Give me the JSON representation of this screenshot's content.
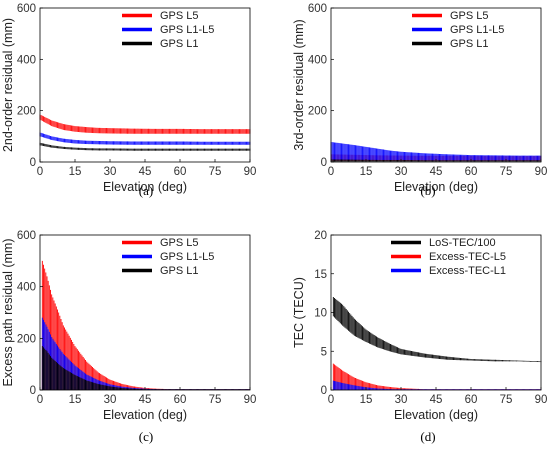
{
  "colors": {
    "red": "#ff0000",
    "blue": "#0000ff",
    "black": "#000000",
    "axis": "#000000",
    "tick_text": "#333333"
  },
  "chart_data": [
    {
      "type": "line",
      "caption": "(a)",
      "xlabel": "Elevation (deg)",
      "ylabel": "2nd-order residual (mm)",
      "xlim": [
        0,
        90
      ],
      "ylim": [
        0,
        600
      ],
      "xticks": [
        0,
        15,
        30,
        45,
        60,
        75,
        90
      ],
      "yticks": [
        0,
        200,
        400,
        600
      ],
      "grid": false,
      "legend_position": "top-right",
      "series": [
        {
          "name": "GPS L5",
          "color": "#ff0000",
          "x": [
            0,
            5,
            10,
            15,
            20,
            25,
            30,
            40,
            50,
            60,
            70,
            80,
            90
          ],
          "low": [
            165,
            140,
            125,
            118,
            114,
            112,
            111,
            110,
            110,
            110,
            110,
            110,
            110
          ],
          "high": [
            185,
            162,
            148,
            140,
            136,
            133,
            132,
            130,
            129,
            129,
            128,
            128,
            128
          ]
        },
        {
          "name": "GPS L1-L5",
          "color": "#0000ff",
          "x": [
            0,
            5,
            10,
            15,
            20,
            25,
            30,
            40,
            50,
            60,
            70,
            80,
            90
          ],
          "low": [
            100,
            86,
            77,
            72,
            70,
            69,
            68,
            67,
            67,
            67,
            67,
            67,
            67
          ],
          "high": [
            115,
            100,
            91,
            86,
            83,
            82,
            81,
            80,
            80,
            80,
            79,
            79,
            79
          ]
        },
        {
          "name": "GPS L1",
          "color": "#000000",
          "x": [
            0,
            5,
            10,
            15,
            20,
            25,
            30,
            40,
            50,
            60,
            70,
            80,
            90
          ],
          "low": [
            65,
            56,
            51,
            48,
            46,
            45,
            45,
            44,
            44,
            44,
            44,
            44,
            44
          ],
          "high": [
            75,
            65,
            59,
            56,
            54,
            53,
            53,
            52,
            52,
            52,
            52,
            52,
            52
          ]
        }
      ]
    },
    {
      "type": "line",
      "caption": "(b)",
      "xlabel": "Elevation (deg)",
      "ylabel": "3rd-order residual (mm)",
      "xlim": [
        0,
        90
      ],
      "ylim": [
        0,
        600
      ],
      "xticks": [
        0,
        15,
        30,
        45,
        60,
        75,
        90
      ],
      "yticks": [
        0,
        200,
        400,
        600
      ],
      "grid": false,
      "legend_position": "top-right",
      "series": [
        {
          "name": "GPS L5",
          "color": "#ff0000",
          "x": [
            0,
            10,
            20,
            30,
            40,
            50,
            60,
            70,
            80,
            90
          ],
          "low": [
            4,
            4,
            4,
            4,
            4,
            4,
            4,
            4,
            4,
            4
          ],
          "high": [
            30,
            28,
            26,
            25,
            24,
            24,
            24,
            23,
            23,
            23
          ]
        },
        {
          "name": "GPS L1-L5",
          "color": "#0000ff",
          "x": [
            0,
            5,
            10,
            15,
            20,
            25,
            30,
            40,
            50,
            60,
            70,
            80,
            90
          ],
          "low": [
            6,
            6,
            6,
            6,
            6,
            6,
            6,
            6,
            6,
            6,
            6,
            6,
            6
          ],
          "high": [
            78,
            72,
            66,
            59,
            52,
            45,
            40,
            34,
            30,
            27,
            26,
            25,
            25
          ]
        },
        {
          "name": "GPS L1",
          "color": "#000000",
          "x": [
            0,
            10,
            20,
            30,
            40,
            50,
            60,
            70,
            80,
            90
          ],
          "low": [
            2,
            2,
            2,
            2,
            2,
            2,
            2,
            2,
            2,
            2
          ],
          "high": [
            10,
            9,
            8,
            8,
            7,
            7,
            7,
            7,
            7,
            7
          ]
        }
      ]
    },
    {
      "type": "line",
      "caption": "(c)",
      "xlabel": "Elevation (deg)",
      "ylabel": "Excess path residual (mm)",
      "xlim": [
        0,
        90
      ],
      "ylim": [
        0,
        600
      ],
      "xticks": [
        0,
        15,
        30,
        45,
        60,
        75,
        90
      ],
      "yticks": [
        0,
        200,
        400,
        600
      ],
      "grid": false,
      "legend_position": "top-right",
      "series": [
        {
          "name": "GPS L5",
          "color": "#ff0000",
          "x": [
            1,
            3,
            5,
            8,
            10,
            15,
            20,
            25,
            30,
            35,
            40,
            45,
            50,
            60,
            70,
            80,
            90
          ],
          "low": [
            0,
            0,
            0,
            0,
            0,
            0,
            0,
            0,
            0,
            0,
            0,
            0,
            0,
            0,
            0,
            0,
            0
          ],
          "high": [
            500,
            440,
            370,
            300,
            250,
            170,
            110,
            68,
            40,
            24,
            14,
            8,
            5,
            2,
            1,
            1,
            1
          ]
        },
        {
          "name": "GPS L1-L5",
          "color": "#0000ff",
          "x": [
            1,
            3,
            5,
            8,
            10,
            15,
            20,
            25,
            30,
            35,
            40,
            45,
            50,
            60,
            70,
            80,
            90
          ],
          "low": [
            0,
            0,
            0,
            0,
            0,
            0,
            0,
            0,
            0,
            0,
            0,
            0,
            0,
            0,
            0,
            0,
            0
          ],
          "high": [
            280,
            245,
            205,
            165,
            140,
            95,
            60,
            38,
            22,
            13,
            8,
            5,
            3,
            1,
            1,
            1,
            1
          ]
        },
        {
          "name": "GPS L1",
          "color": "#000000",
          "x": [
            1,
            3,
            5,
            8,
            10,
            15,
            20,
            25,
            30,
            35,
            40,
            45,
            50,
            60,
            70,
            80,
            90
          ],
          "low": [
            0,
            0,
            0,
            0,
            0,
            0,
            0,
            0,
            0,
            0,
            0,
            0,
            0,
            0,
            0,
            0,
            0
          ],
          "high": [
            170,
            150,
            125,
            100,
            85,
            58,
            37,
            23,
            14,
            8,
            5,
            3,
            2,
            1,
            1,
            1,
            1
          ]
        }
      ]
    },
    {
      "type": "line",
      "caption": "(d)",
      "xlabel": "Elevation (deg)",
      "ylabel": "TEC (TECU)",
      "xlim": [
        0,
        90
      ],
      "ylim": [
        0,
        20
      ],
      "xticks": [
        0,
        15,
        30,
        45,
        60,
        75,
        90
      ],
      "yticks": [
        0,
        5,
        10,
        15,
        20
      ],
      "grid": false,
      "legend_position": "top-right",
      "series": [
        {
          "name": "LoS-TEC/100",
          "color": "#000000",
          "x": [
            1,
            5,
            10,
            15,
            20,
            25,
            30,
            40,
            50,
            60,
            70,
            80,
            90
          ],
          "low": [
            9.5,
            8.3,
            7.0,
            6.2,
            5.5,
            5.0,
            4.6,
            4.2,
            3.9,
            3.8,
            3.7,
            3.7,
            3.6
          ],
          "high": [
            12.0,
            11.0,
            9.2,
            7.8,
            6.8,
            6.0,
            5.3,
            4.7,
            4.3,
            4.0,
            3.9,
            3.8,
            3.7
          ]
        },
        {
          "name": "Excess-TEC-L5",
          "color": "#ff0000",
          "x": [
            1,
            5,
            10,
            15,
            20,
            25,
            30,
            40,
            50,
            60,
            70,
            80,
            90
          ],
          "low": [
            0,
            0,
            0,
            0,
            0,
            0,
            0,
            0,
            0,
            0,
            0,
            0,
            0
          ],
          "high": [
            3.4,
            2.5,
            1.6,
            1.0,
            0.6,
            0.4,
            0.25,
            0.1,
            0.05,
            0.02,
            0.01,
            0.01,
            0.01
          ]
        },
        {
          "name": "Excess-TEC-L1",
          "color": "#0000ff",
          "x": [
            1,
            5,
            10,
            15,
            20,
            25,
            30,
            40,
            50,
            60,
            70,
            80,
            90
          ],
          "low": [
            0,
            0,
            0,
            0,
            0,
            0,
            0,
            0,
            0,
            0,
            0,
            0,
            0
          ],
          "high": [
            1.2,
            0.9,
            0.6,
            0.35,
            0.2,
            0.12,
            0.08,
            0.04,
            0.02,
            0.01,
            0.01,
            0.01,
            0.01
          ]
        }
      ]
    }
  ]
}
